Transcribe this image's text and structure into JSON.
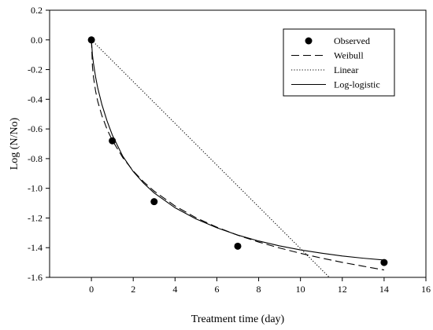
{
  "chart_data": {
    "type": "line",
    "title": "",
    "xlabel": "Treatment time (day)",
    "ylabel": "Log (N/No)",
    "xlim": [
      -2,
      16
    ],
    "ylim": [
      -1.6,
      0.2
    ],
    "xticks": [
      0,
      2,
      4,
      6,
      8,
      10,
      12,
      14,
      16
    ],
    "yticks": [
      0.2,
      0.0,
      -0.2,
      -0.4,
      -0.6,
      -0.8,
      -1.0,
      -1.2,
      -1.4,
      -1.6
    ],
    "xtick_labels": [
      "0",
      "2",
      "4",
      "6",
      "8",
      "10",
      "12",
      "14",
      "16"
    ],
    "ytick_labels": [
      "0.2",
      "0.0",
      "-0.2",
      "-0.4",
      "-0.6",
      "-0.8",
      "-1.0",
      "-1.2",
      "-1.4",
      "-1.6"
    ],
    "grid": false,
    "legend_position": "top-right",
    "series": [
      {
        "name": "Observed",
        "style": "marker",
        "x": [
          0,
          1,
          3,
          7,
          14
        ],
        "y": [
          0.0,
          -0.68,
          -1.09,
          -1.39,
          -1.5
        ]
      },
      {
        "name": "Weibull",
        "style": "dashed",
        "x": [
          0,
          0.05,
          0.1,
          0.2,
          0.3,
          0.5,
          0.75,
          1,
          1.5,
          2,
          2.5,
          3,
          4,
          5,
          6,
          7,
          8,
          9,
          10,
          11,
          12,
          13,
          14
        ],
        "y": [
          0.0,
          -0.183,
          -0.252,
          -0.345,
          -0.413,
          -0.51,
          -0.603,
          -0.677,
          -0.793,
          -0.883,
          -0.957,
          -1.019,
          -1.119,
          -1.198,
          -1.262,
          -1.316,
          -1.362,
          -1.402,
          -1.438,
          -1.47,
          -1.499,
          -1.525,
          -1.55
        ]
      },
      {
        "name": "Linear",
        "style": "dotted",
        "x": [
          0,
          11.38
        ],
        "y": [
          0.0,
          -1.6
        ]
      },
      {
        "name": "Log-logistic",
        "style": "solid",
        "x": [
          0,
          0.05,
          0.1,
          0.2,
          0.3,
          0.5,
          0.75,
          1,
          1.5,
          2,
          2.5,
          3,
          4,
          5,
          6,
          7,
          8,
          9,
          10,
          11,
          12,
          13,
          14
        ],
        "y": [
          0.0,
          -0.103,
          -0.16,
          -0.25,
          -0.322,
          -0.435,
          -0.547,
          -0.641,
          -0.784,
          -0.887,
          -0.966,
          -1.031,
          -1.131,
          -1.206,
          -1.266,
          -1.315,
          -1.355,
          -1.388,
          -1.415,
          -1.437,
          -1.456,
          -1.471,
          -1.483
        ]
      }
    ]
  }
}
